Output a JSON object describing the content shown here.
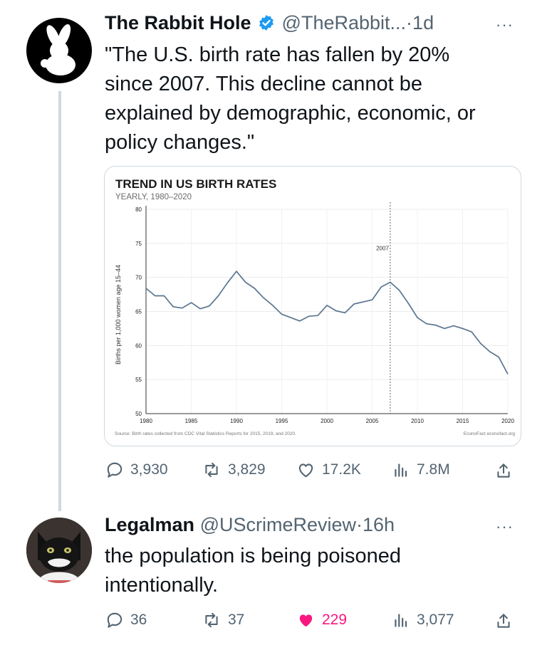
{
  "tweet": {
    "author_name": "The Rabbit Hole",
    "handle": "@TheRabbit...",
    "sep": "·",
    "time": "1d",
    "more": "···",
    "text_lines": [
      "\"The U.S. birth rate has fallen by 20%",
      "since 2007. This decline cannot be",
      "explained by demographic, economic, or",
      "policy changes.\""
    ],
    "actions": {
      "replies": "3,930",
      "reposts": "3,829",
      "likes": "17.2K",
      "views": "7.8M"
    },
    "icons": [
      "verified-badge-icon",
      "reply-icon",
      "repost-icon",
      "like-icon",
      "views-icon",
      "share-icon"
    ],
    "colors": {
      "verified": "#1d9bf0",
      "like_active": "#f91880",
      "muted": "#536471"
    }
  },
  "reply": {
    "author_name": "Legalman",
    "handle": "@UScrimeReview",
    "sep": "·",
    "time": "16h",
    "more": "···",
    "text_lines": [
      "the population is being poisoned",
      "intentionally."
    ],
    "actions": {
      "replies": "36",
      "reposts": "37",
      "likes": "229",
      "views": "3,077"
    }
  },
  "chart_data": {
    "type": "line",
    "title": "TREND IN US BIRTH RATES",
    "subtitle": "YEARLY, 1980–2020",
    "ylabel": "Births per 1,000 women age 15–44",
    "xlabel": "",
    "xlim": [
      1980,
      2020
    ],
    "ylim": [
      50,
      80
    ],
    "xticks": [
      1980,
      1985,
      1990,
      1995,
      2000,
      2005,
      2010,
      2015,
      2020
    ],
    "yticks": [
      50,
      55,
      60,
      65,
      70,
      75,
      80
    ],
    "grid": true,
    "annotation": {
      "x": 2007,
      "label": "2007"
    },
    "source": "Source: Birth rates collected from CDC Vital Statistics Reports for 2015, 2019, and 2020.",
    "credit": "EconoFact  econofact.org",
    "x": [
      1980,
      1981,
      1982,
      1983,
      1984,
      1985,
      1986,
      1987,
      1988,
      1989,
      1990,
      1991,
      1992,
      1993,
      1994,
      1995,
      1996,
      1997,
      1998,
      1999,
      2000,
      2001,
      2002,
      2003,
      2004,
      2005,
      2006,
      2007,
      2008,
      2009,
      2010,
      2011,
      2012,
      2013,
      2014,
      2015,
      2016,
      2017,
      2018,
      2019,
      2020
    ],
    "series": [
      {
        "values": [
          68.4,
          67.3,
          67.3,
          65.7,
          65.5,
          66.3,
          65.4,
          65.8,
          67.3,
          69.2,
          70.9,
          69.3,
          68.4,
          67.0,
          65.9,
          64.6,
          64.1,
          63.6,
          64.3,
          64.4,
          65.9,
          65.1,
          64.8,
          66.1,
          66.4,
          66.7,
          68.6,
          69.3,
          68.1,
          66.2,
          64.1,
          63.2,
          63.0,
          62.5,
          62.9,
          62.5,
          62.0,
          60.3,
          59.1,
          58.3,
          55.8
        ]
      }
    ]
  }
}
